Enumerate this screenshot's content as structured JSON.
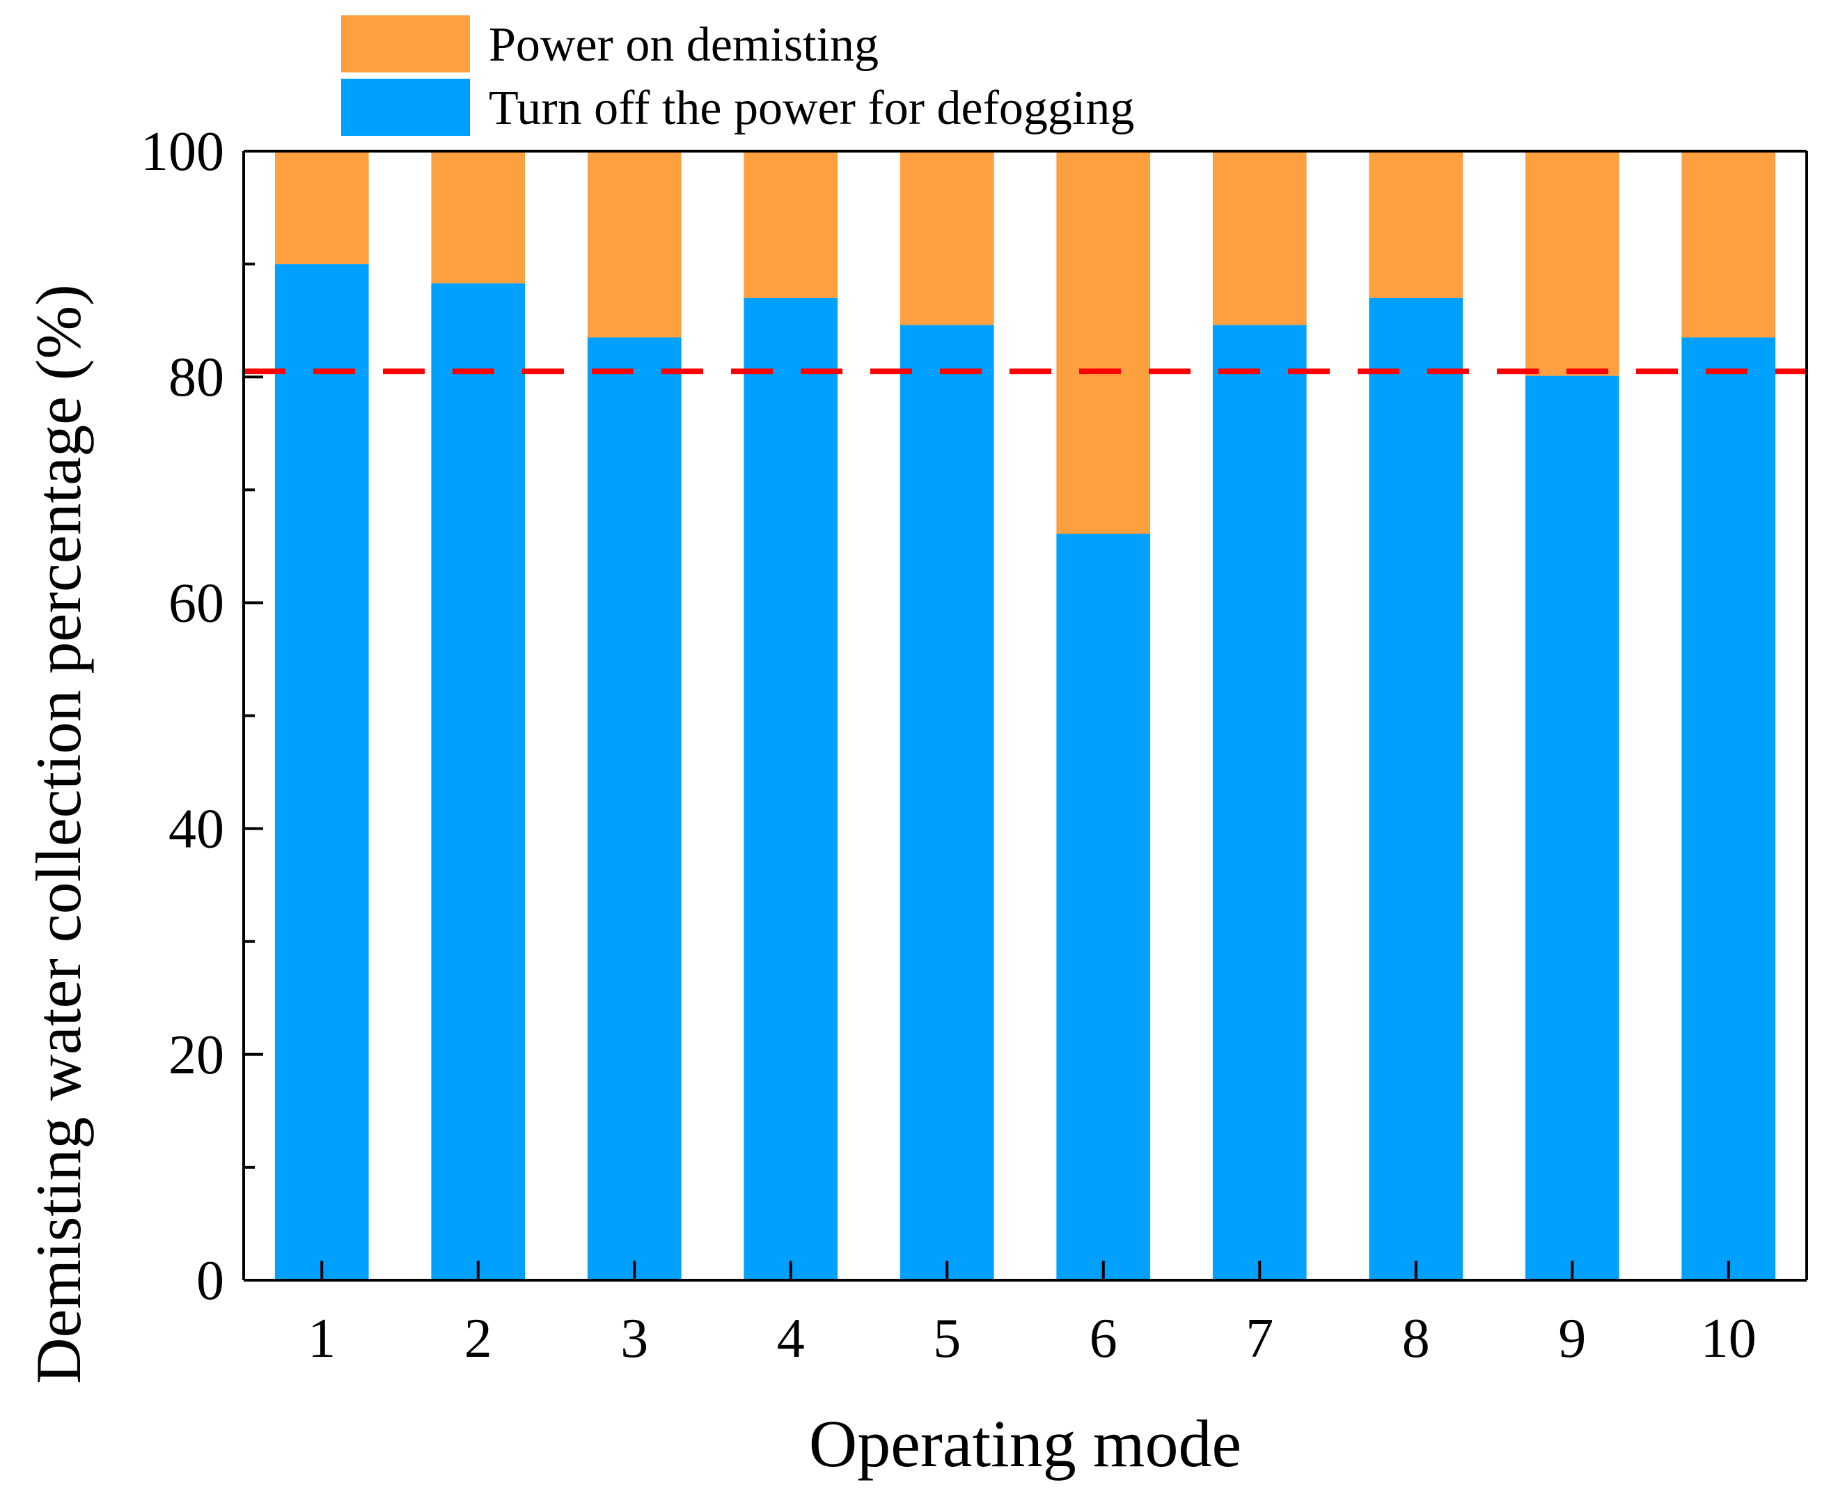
{
  "chart_data": {
    "type": "bar",
    "stacked": true,
    "title": "",
    "xlabel": "Operating mode",
    "ylabel": "Demisting water collection percentage (%)",
    "categories": [
      "1",
      "2",
      "3",
      "4",
      "5",
      "6",
      "7",
      "8",
      "9",
      "10"
    ],
    "ylim": [
      0,
      100
    ],
    "yticks": [
      "0",
      "20",
      "40",
      "60",
      "80",
      "100"
    ],
    "series": [
      {
        "name": "Turn off the power for defogging",
        "color": "#00a0ff",
        "values": [
          90.0,
          88.3,
          83.5,
          87.0,
          84.6,
          66.1,
          84.6,
          87.0,
          80.1,
          83.5
        ]
      },
      {
        "name": "Power on demisting",
        "color": "#ffa040",
        "values": [
          10.0,
          11.7,
          16.5,
          13.0,
          15.4,
          33.9,
          15.4,
          13.0,
          19.9,
          16.5
        ]
      }
    ],
    "legend": {
      "position": "top",
      "entries": [
        "Power on demisting",
        "Turn off the power for defogging"
      ]
    },
    "reference_line": {
      "value": 80.5,
      "color": "#ff0000",
      "style": "dashed"
    },
    "grid": false
  }
}
